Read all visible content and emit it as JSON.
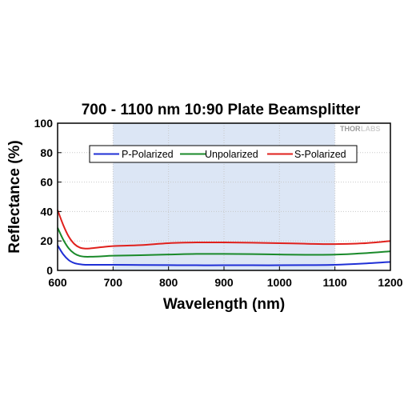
{
  "chart_data": {
    "type": "line",
    "title": "700 - 1100 nm 10:90 Plate Beamsplitter",
    "xlabel": "Wavelength (nm)",
    "ylabel": "Reflectance (%)",
    "xlim": [
      600,
      1200
    ],
    "ylim": [
      0,
      100
    ],
    "xticks": [
      "600",
      "700",
      "800",
      "900",
      "1000",
      "1100",
      "1200"
    ],
    "yticks": [
      "0",
      "20",
      "40",
      "60",
      "80",
      "100"
    ],
    "grid": true,
    "legend_position": "top-center",
    "highlight_band": [
      700,
      1100
    ],
    "highlight_color": "#dce6f5",
    "watermark": {
      "part1": "THOR",
      "part2": "LABS"
    },
    "x": [
      600,
      610,
      620,
      630,
      640,
      650,
      660,
      680,
      700,
      750,
      800,
      850,
      900,
      950,
      1000,
      1050,
      1100,
      1150,
      1200
    ],
    "series": [
      {
        "name": "P-Polarized",
        "color": "#1f2fd6",
        "values": [
          17,
          11,
          7,
          5,
          4.2,
          3.8,
          3.8,
          3.8,
          3.8,
          3.7,
          3.6,
          3.5,
          3.5,
          3.5,
          3.5,
          3.6,
          3.8,
          4.6,
          5.8
        ]
      },
      {
        "name": "Unpolarized",
        "color": "#1a8a2a",
        "values": [
          29,
          21,
          15,
          11.5,
          9.8,
          9.3,
          9.3,
          9.6,
          10,
          10.3,
          10.8,
          11.2,
          11.2,
          11.1,
          10.8,
          10.6,
          10.7,
          11.6,
          13
        ]
      },
      {
        "name": "S-Polarized",
        "color": "#e0201c",
        "values": [
          41,
          31,
          23,
          18,
          15.5,
          14.8,
          15,
          15.8,
          16.5,
          17.2,
          18.5,
          19,
          19,
          18.8,
          18.5,
          18.1,
          17.9,
          18.4,
          20
        ]
      }
    ]
  }
}
